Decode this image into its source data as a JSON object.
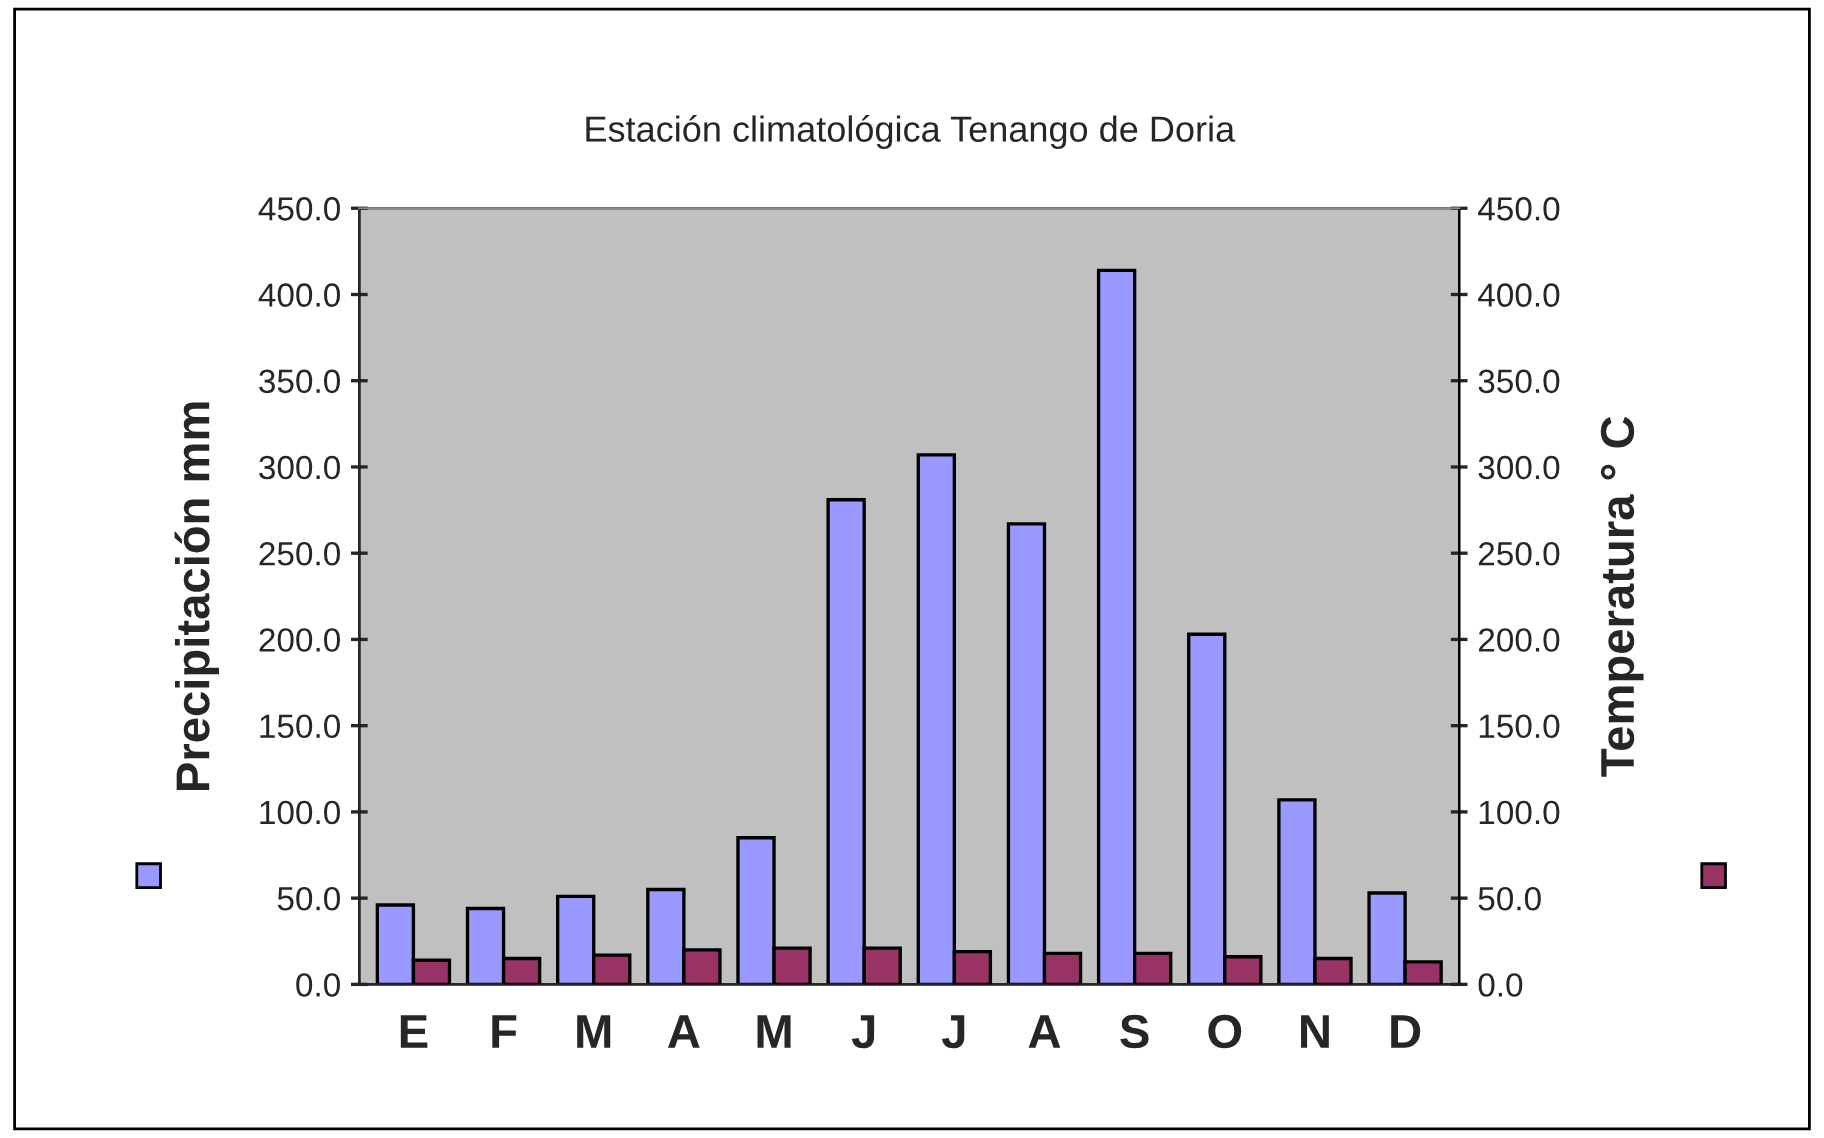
{
  "chart_data": {
    "type": "bar",
    "title": "Estación climatológica Tenango de Doria",
    "ylabel": "Precipitación mm",
    "y2label": "Temperatura ° C",
    "categories": [
      "E",
      "F",
      "M",
      "A",
      "M",
      "J",
      "J",
      "A",
      "S",
      "O",
      "N",
      "D"
    ],
    "series": [
      {
        "color": "#9999ff",
        "values": [
          46,
          44,
          51,
          55,
          85,
          281,
          307,
          267,
          414,
          203,
          107,
          53
        ]
      },
      {
        "color": "#993366",
        "axis": "y2",
        "values": [
          14,
          15,
          17,
          20,
          21,
          21,
          19,
          18,
          18,
          16,
          15,
          13
        ]
      }
    ],
    "ylim": [
      0,
      450
    ],
    "yticks": [
      {
        "value": 0,
        "label": "0.0"
      },
      {
        "value": 50,
        "label": "50.0"
      },
      {
        "value": 100,
        "label": "100.0"
      },
      {
        "value": 150,
        "label": "150.0"
      },
      {
        "value": 200,
        "label": "200.0"
      },
      {
        "value": 250,
        "label": "250.0"
      },
      {
        "value": 300,
        "label": "300.0"
      },
      {
        "value": 350,
        "label": "350.0"
      },
      {
        "value": 400,
        "label": "400.0"
      },
      {
        "value": 450,
        "label": "450.0"
      }
    ],
    "y2lim": [
      0,
      450
    ],
    "y2ticks": [
      {
        "value": 0,
        "label": "0.0"
      },
      {
        "value": 50,
        "label": "50.0"
      },
      {
        "value": 100,
        "label": "100.0"
      },
      {
        "value": 150,
        "label": "150.0"
      },
      {
        "value": 200,
        "label": "200.0"
      },
      {
        "value": 250,
        "label": "250.0"
      },
      {
        "value": 300,
        "label": "300.0"
      },
      {
        "value": 350,
        "label": "350.0"
      },
      {
        "value": 400,
        "label": "400.0"
      },
      {
        "value": 450,
        "label": "450.0"
      }
    ],
    "grid": false
  }
}
